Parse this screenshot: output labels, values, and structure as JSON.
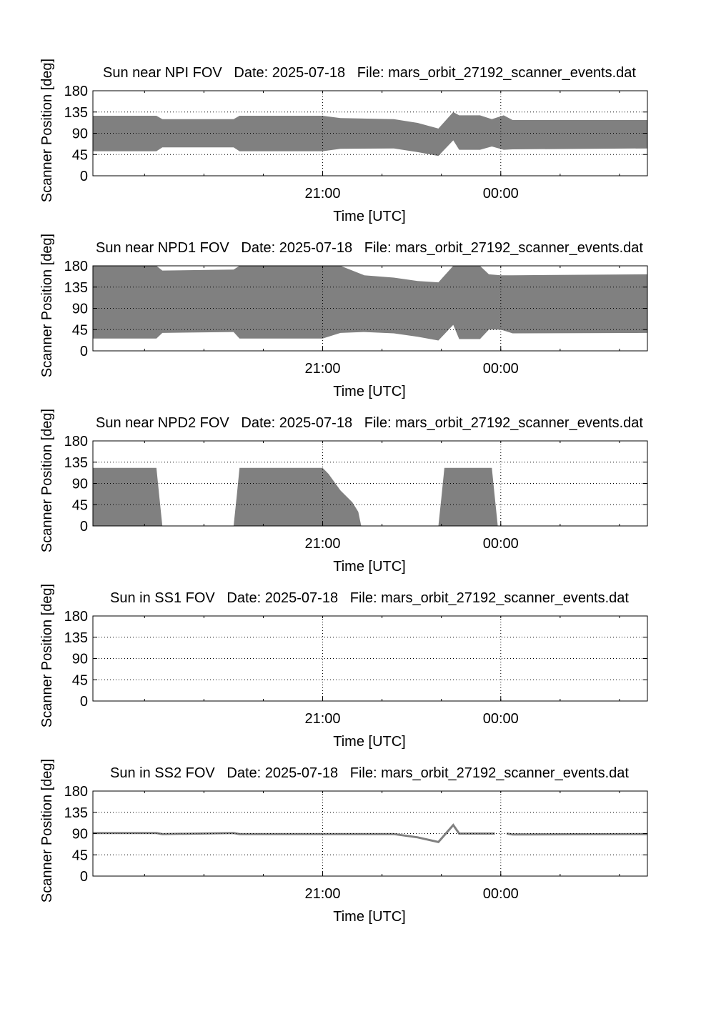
{
  "chart_data": [
    {
      "type": "area",
      "title": "Sun near NPI FOV   Date: 2025-07-18   File: mars_orbit_27192_scanner_events.dat",
      "xlabel": "Time [UTC]",
      "ylabel": "Scanner Position [deg]",
      "ylim": [
        0,
        180
      ],
      "yticks": [
        0,
        45,
        90,
        135,
        180
      ],
      "xlim_hours": [
        17.13,
        26.47
      ],
      "xticks": [
        {
          "value": 21,
          "label": "21:00"
        },
        {
          "value": 24,
          "label": "00:00"
        }
      ],
      "grid": true,
      "series": [
        {
          "x": [
            17.13,
            18.2,
            18.3,
            19.5,
            19.6,
            21.0,
            21.3,
            22.2,
            22.6,
            22.95,
            23.2,
            23.3,
            23.5,
            23.65,
            23.85,
            24.05,
            24.2,
            26.47
          ],
          "low": [
            52,
            52,
            60,
            60,
            52,
            52,
            57,
            58,
            50,
            42,
            75,
            55,
            55,
            55,
            62,
            55,
            56,
            58
          ],
          "high": [
            127,
            127,
            120,
            120,
            127,
            127,
            122,
            120,
            112,
            100,
            135,
            128,
            128,
            128,
            120,
            128,
            118,
            118
          ]
        }
      ]
    },
    {
      "type": "area",
      "title": "Sun near NPD1 FOV   Date: 2025-07-18   File: mars_orbit_27192_scanner_events.dat",
      "xlabel": "Time [UTC]",
      "ylabel": "Scanner Position [deg]",
      "ylim": [
        0,
        180
      ],
      "yticks": [
        0,
        45,
        90,
        135,
        180
      ],
      "xlim_hours": [
        17.13,
        26.47
      ],
      "xticks": [
        {
          "value": 21,
          "label": "21:00"
        },
        {
          "value": 24,
          "label": "00:00"
        }
      ],
      "grid": true,
      "series": [
        {
          "x": [
            17.13,
            18.2,
            18.3,
            19.5,
            19.6,
            21.0,
            21.3,
            21.7,
            22.2,
            22.6,
            22.95,
            23.2,
            23.3,
            23.55,
            23.65,
            23.8,
            24.0,
            24.2,
            26.47
          ],
          "low": [
            26,
            26,
            38,
            40,
            26,
            26,
            38,
            40,
            37,
            30,
            22,
            55,
            25,
            25,
            25,
            45,
            45,
            37,
            38
          ],
          "high": [
            180,
            180,
            170,
            172,
            180,
            180,
            180,
            160,
            155,
            148,
            145,
            180,
            180,
            180,
            180,
            162,
            160,
            160,
            162
          ]
        }
      ]
    },
    {
      "type": "area",
      "title": "Sun near NPD2 FOV   Date: 2025-07-18   File: mars_orbit_27192_scanner_events.dat",
      "xlabel": "Time [UTC]",
      "ylabel": "Scanner Position [deg]",
      "ylim": [
        0,
        180
      ],
      "yticks": [
        0,
        45,
        90,
        135,
        180
      ],
      "xlim_hours": [
        17.13,
        26.47
      ],
      "xticks": [
        {
          "value": 21,
          "label": "21:00"
        },
        {
          "value": 24,
          "label": "00:00"
        }
      ],
      "grid": true,
      "series": [
        {
          "x": [
            17.13,
            18.2,
            18.25,
            18.3
          ],
          "low": [
            0,
            0,
            0,
            0
          ],
          "high": [
            123,
            123,
            60,
            0
          ]
        },
        {
          "x": [
            19.5,
            19.55,
            19.6,
            21.0,
            21.1,
            21.3,
            21.5,
            21.6,
            21.65
          ],
          "low": [
            0,
            0,
            0,
            0,
            0,
            0,
            0,
            0,
            0
          ],
          "high": [
            0,
            60,
            123,
            123,
            110,
            75,
            50,
            30,
            0
          ]
        },
        {
          "x": [
            22.95,
            23.0,
            23.05,
            23.85,
            23.9,
            23.95
          ],
          "low": [
            0,
            0,
            0,
            0,
            0,
            0
          ],
          "high": [
            0,
            60,
            123,
            123,
            60,
            0
          ]
        }
      ]
    },
    {
      "type": "area",
      "title": "Sun in SS1 FOV   Date: 2025-07-18   File: mars_orbit_27192_scanner_events.dat",
      "xlabel": "Time [UTC]",
      "ylabel": "Scanner Position [deg]",
      "ylim": [
        0,
        180
      ],
      "yticks": [
        0,
        45,
        90,
        135,
        180
      ],
      "xlim_hours": [
        17.13,
        26.47
      ],
      "xticks": [
        {
          "value": 21,
          "label": "21:00"
        },
        {
          "value": 24,
          "label": "00:00"
        }
      ],
      "grid": true,
      "series": []
    },
    {
      "type": "line",
      "title": "Sun in SS2 FOV   Date: 2025-07-18   File: mars_orbit_27192_scanner_events.dat",
      "xlabel": "Time [UTC]",
      "ylabel": "Scanner Position [deg]",
      "ylim": [
        0,
        180
      ],
      "yticks": [
        0,
        45,
        90,
        135,
        180
      ],
      "xlim_hours": [
        17.13,
        26.47
      ],
      "xticks": [
        {
          "value": 21,
          "label": "21:00"
        },
        {
          "value": 24,
          "label": "00:00"
        }
      ],
      "grid": true,
      "series": [
        {
          "x": [
            17.13,
            18.2,
            18.3,
            19.5,
            19.6,
            21.0,
            22.2,
            22.6,
            22.95,
            23.2,
            23.3,
            23.9
          ],
          "y": [
            91,
            91,
            89,
            91,
            89,
            89,
            89,
            82,
            72,
            108,
            90,
            90
          ]
        },
        {
          "x": [
            24.1,
            24.2,
            26.47
          ],
          "y": [
            90,
            88,
            89
          ]
        }
      ]
    }
  ]
}
